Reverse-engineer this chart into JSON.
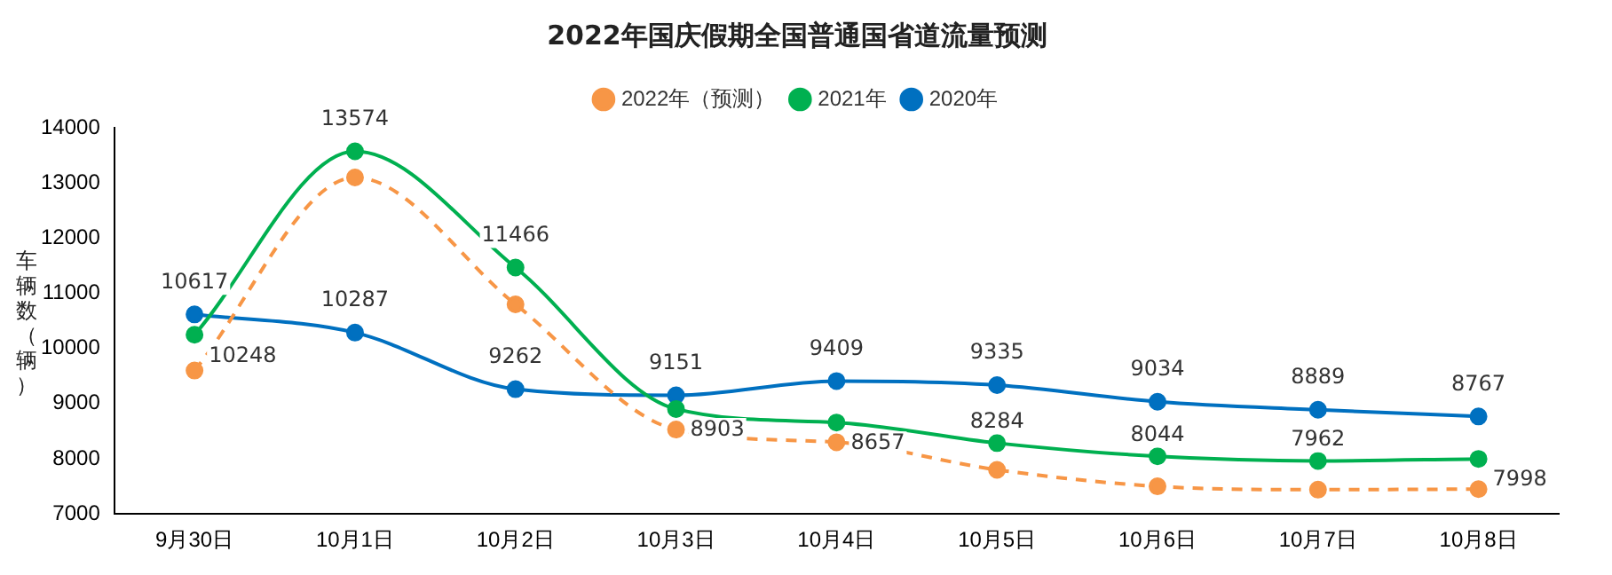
{
  "chart_data": {
    "type": "line",
    "title": "2022年国庆假期全国普通国省道流量预测",
    "ylabel": "车辆数（辆）",
    "categories": [
      "9月30日",
      "10月1日",
      "10月2日",
      "10月3日",
      "10月4日",
      "10月5日",
      "10月6日",
      "10月7日",
      "10月8日"
    ],
    "series": [
      {
        "name": "2022年（预测）",
        "color": "#f79646",
        "line_style": "dashed",
        "values": [
          9600,
          13100,
          10800,
          8530,
          8300,
          7800,
          7500,
          7440,
          7450
        ]
      },
      {
        "name": "2021年",
        "color": "#00b050",
        "values": [
          10248,
          13574,
          11466,
          8903,
          8657,
          8284,
          8044,
          7962,
          7998
        ],
        "value_labels": [
          "10248",
          "13574",
          "11466",
          "8903",
          "8657",
          "8284",
          "8044",
          "7962",
          "7998"
        ]
      },
      {
        "name": "2020年",
        "color": "#0070c0",
        "values": [
          10617,
          10287,
          9262,
          9151,
          9409,
          9335,
          9034,
          8889,
          8767
        ],
        "value_labels": [
          "10617",
          "10287",
          "9262",
          "9151",
          "9409",
          "9335",
          "9034",
          "8889",
          "8767"
        ]
      }
    ],
    "ylim": [
      7000,
      14000
    ],
    "yticks": [
      7000,
      8000,
      9000,
      10000,
      11000,
      12000,
      13000,
      14000
    ],
    "grid": false,
    "legend": "top",
    "marker": "circle"
  }
}
